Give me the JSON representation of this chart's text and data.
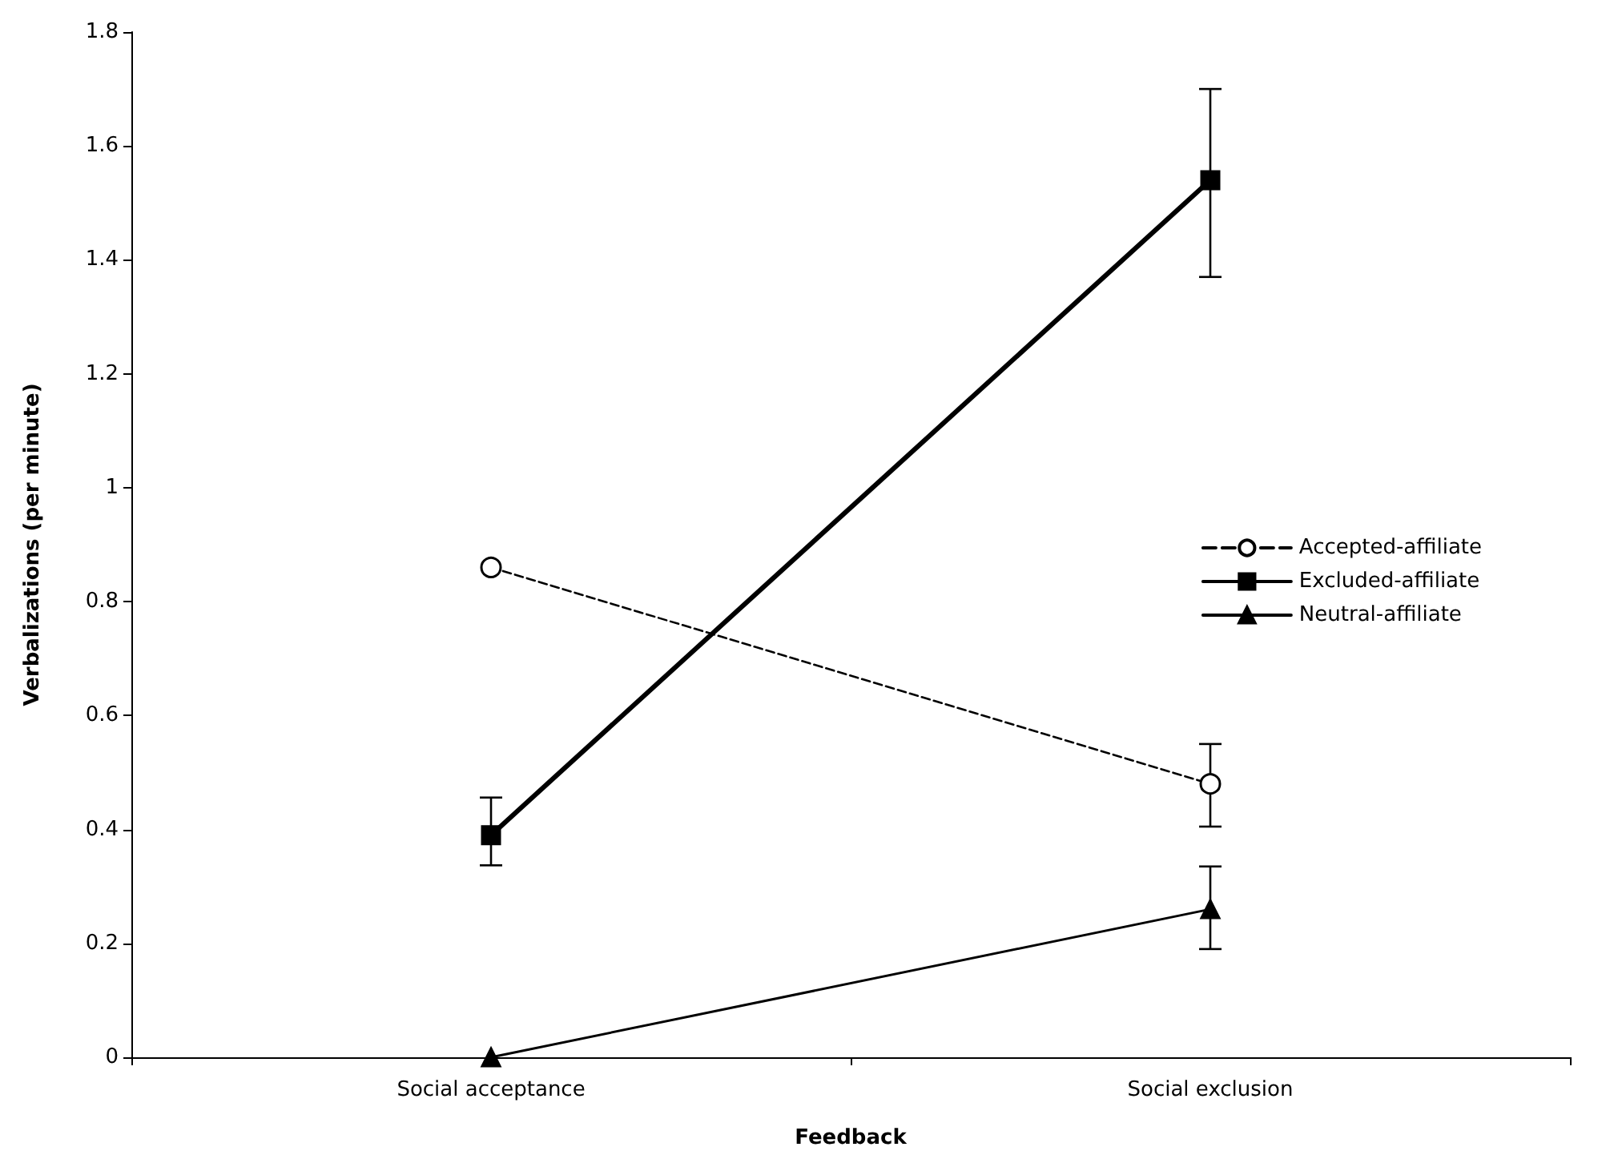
{
  "chart_data": {
    "type": "line",
    "xlabel": "Feedback",
    "ylabel": "Verbalizations (per minute)",
    "categories": [
      "Social acceptance",
      "Social exclusion"
    ],
    "series": [
      {
        "name": "Accepted-affiliate",
        "color": "#000000",
        "values": [
          0.86,
          0.48
        ],
        "errors": [
          null,
          [
            0.405,
            0.55
          ]
        ],
        "marker": "circle",
        "line_style": "dashed"
      },
      {
        "name": "Excluded-affiliate",
        "color": "#000000",
        "values": [
          0.39,
          1.54
        ],
        "errors": [
          [
            0.337,
            0.456
          ],
          [
            1.37,
            1.7
          ]
        ],
        "marker": "square",
        "line_style": "solid"
      },
      {
        "name": "Neutral-affiliate",
        "color": "#000000",
        "values": [
          0,
          0.26
        ],
        "errors": [
          null,
          [
            0.19,
            0.335
          ]
        ],
        "marker": "triangle",
        "line_style": "solid"
      }
    ],
    "ylim": [
      0,
      1.8
    ],
    "yticks": [
      0,
      0.2,
      0.4,
      0.6,
      0.8,
      1,
      1.2,
      1.4,
      1.6,
      1.8
    ],
    "grid": false,
    "legend": "right"
  }
}
